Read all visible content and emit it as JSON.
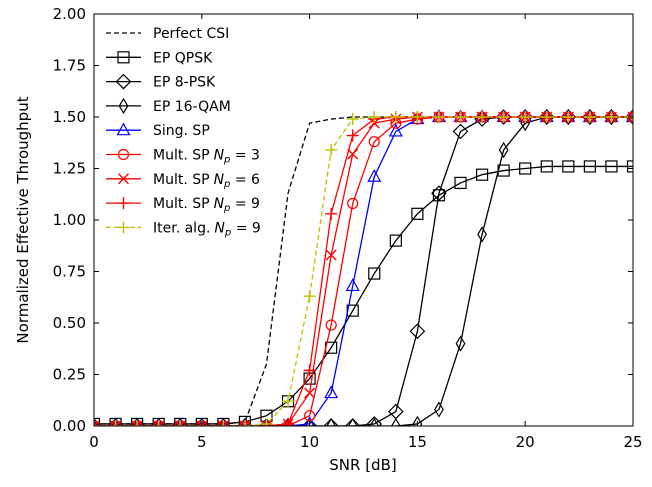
{
  "chart_data": {
    "type": "line",
    "xlabel": "SNR [dB]",
    "ylabel": "Normalized Effective Throughput",
    "xlim": [
      0,
      25
    ],
    "ylim": [
      0,
      2.0
    ],
    "xticks": [
      "0",
      "5",
      "10",
      "15",
      "20",
      "25"
    ],
    "yticks": [
      "0.00",
      "0.25",
      "0.50",
      "0.75",
      "1.00",
      "1.25",
      "1.50",
      "1.75",
      "2.00"
    ],
    "grid": false,
    "legend_position": "upper-left",
    "series": [
      {
        "name": "Perfect CSI",
        "color": "#000000",
        "dash": "dashed",
        "marker": "none",
        "x": [
          0,
          1,
          2,
          3,
          4,
          5,
          6,
          7,
          8,
          9,
          10,
          11,
          12,
          13,
          14,
          15,
          16,
          17,
          18,
          19,
          20,
          21,
          22,
          23,
          24,
          25
        ],
        "y": [
          0.01,
          0.01,
          0.01,
          0.01,
          0.01,
          0.01,
          0.01,
          0.02,
          0.3,
          1.13,
          1.47,
          1.49,
          1.5,
          1.5,
          1.5,
          1.5,
          1.5,
          1.5,
          1.5,
          1.5,
          1.5,
          1.5,
          1.5,
          1.5,
          1.5,
          1.5
        ]
      },
      {
        "name": "EP QPSK",
        "color": "#000000",
        "dash": "solid",
        "marker": "square",
        "x": [
          0,
          1,
          2,
          3,
          4,
          5,
          6,
          7,
          8,
          9,
          10,
          11,
          12,
          13,
          14,
          15,
          16,
          17,
          18,
          19,
          20,
          21,
          22,
          23,
          24,
          25
        ],
        "y": [
          0.01,
          0.01,
          0.01,
          0.01,
          0.01,
          0.01,
          0.01,
          0.02,
          0.05,
          0.12,
          0.23,
          0.38,
          0.56,
          0.74,
          0.9,
          1.03,
          1.12,
          1.18,
          1.22,
          1.24,
          1.25,
          1.26,
          1.26,
          1.26,
          1.26,
          1.26
        ]
      },
      {
        "name": "EP 8-PSK",
        "color": "#000000",
        "dash": "solid",
        "marker": "diamond",
        "x": [
          0,
          1,
          2,
          3,
          4,
          5,
          6,
          7,
          8,
          9,
          10,
          11,
          12,
          13,
          14,
          15,
          16,
          17,
          18,
          19,
          20,
          21,
          22,
          23,
          24,
          25
        ],
        "y": [
          0,
          0,
          0,
          0,
          0,
          0,
          0,
          0,
          0,
          0,
          0,
          0,
          0,
          0.01,
          0.07,
          0.46,
          1.13,
          1.43,
          1.49,
          1.5,
          1.5,
          1.5,
          1.5,
          1.5,
          1.5,
          1.5
        ]
      },
      {
        "name": "EP 16-QAM",
        "color": "#000000",
        "dash": "solid",
        "marker": "thin-diamond",
        "x": [
          0,
          1,
          2,
          3,
          4,
          5,
          6,
          7,
          8,
          9,
          10,
          11,
          12,
          13,
          14,
          15,
          16,
          17,
          18,
          19,
          20,
          21,
          22,
          23,
          24,
          25
        ],
        "y": [
          0,
          0,
          0,
          0,
          0,
          0,
          0,
          0,
          0,
          0,
          0,
          0,
          0,
          0,
          0,
          0.01,
          0.08,
          0.4,
          0.93,
          1.34,
          1.47,
          1.5,
          1.5,
          1.5,
          1.5,
          1.5
        ]
      },
      {
        "name": "Sing. SP",
        "color": "#0000ff",
        "dash": "solid",
        "marker": "triangle",
        "x": [
          0,
          1,
          2,
          3,
          4,
          5,
          6,
          7,
          8,
          9,
          10,
          11,
          12,
          13,
          14,
          15,
          16,
          17,
          18,
          19,
          20,
          21,
          22,
          23,
          24,
          25
        ],
        "y": [
          0,
          0,
          0,
          0,
          0,
          0,
          0,
          0,
          0,
          0,
          0.01,
          0.16,
          0.68,
          1.21,
          1.43,
          1.49,
          1.5,
          1.5,
          1.5,
          1.5,
          1.5,
          1.5,
          1.5,
          1.5,
          1.5,
          1.5
        ]
      },
      {
        "name": "Mult. SP",
        "np": "3",
        "color": "#ff0000",
        "dash": "solid",
        "marker": "circle",
        "x": [
          0,
          1,
          2,
          3,
          4,
          5,
          6,
          7,
          8,
          9,
          10,
          11,
          12,
          13,
          14,
          15,
          16,
          17,
          18,
          19,
          20,
          21,
          22,
          23,
          24,
          25
        ],
        "y": [
          0,
          0,
          0,
          0,
          0,
          0,
          0,
          0,
          0,
          0,
          0.05,
          0.49,
          1.08,
          1.38,
          1.47,
          1.49,
          1.5,
          1.5,
          1.5,
          1.5,
          1.5,
          1.5,
          1.5,
          1.5,
          1.5,
          1.5
        ]
      },
      {
        "name": "Mult. SP",
        "np": "6",
        "color": "#ff0000",
        "dash": "solid",
        "marker": "x",
        "x": [
          0,
          1,
          2,
          3,
          4,
          5,
          6,
          7,
          8,
          9,
          10,
          11,
          12,
          13,
          14,
          15,
          16,
          17,
          18,
          19,
          20,
          21,
          22,
          23,
          24,
          25
        ],
        "y": [
          0,
          0,
          0,
          0,
          0,
          0,
          0,
          0,
          0,
          0.01,
          0.16,
          0.83,
          1.32,
          1.47,
          1.49,
          1.5,
          1.5,
          1.5,
          1.5,
          1.5,
          1.5,
          1.5,
          1.5,
          1.5,
          1.5,
          1.5
        ]
      },
      {
        "name": "Mult. SP",
        "np": "9",
        "color": "#ff0000",
        "dash": "solid",
        "marker": "plus",
        "x": [
          0,
          1,
          2,
          3,
          4,
          5,
          6,
          7,
          8,
          9,
          10,
          11,
          12,
          13,
          14,
          15,
          16,
          17,
          18,
          19,
          20,
          21,
          22,
          23,
          24,
          25
        ],
        "y": [
          0,
          0,
          0,
          0,
          0,
          0,
          0,
          0,
          0,
          0.01,
          0.27,
          1.03,
          1.41,
          1.49,
          1.5,
          1.5,
          1.5,
          1.5,
          1.5,
          1.5,
          1.5,
          1.5,
          1.5,
          1.5,
          1.5,
          1.5
        ]
      },
      {
        "name": "Iter. alg.",
        "np": "9",
        "color": "#bfbf00",
        "dash": "dashed",
        "marker": "plus",
        "x": [
          0,
          1,
          2,
          3,
          4,
          5,
          6,
          7,
          8,
          9,
          10,
          11,
          12,
          13,
          14,
          15,
          16,
          17,
          18,
          19,
          20,
          21,
          22,
          23,
          24,
          25
        ],
        "y": [
          0,
          0,
          0,
          0,
          0,
          0,
          0,
          0,
          0.01,
          0.12,
          0.63,
          1.34,
          1.49,
          1.5,
          1.5,
          1.5,
          1.5,
          1.5,
          1.5,
          1.5,
          1.5,
          1.5,
          1.5,
          1.5,
          1.5,
          1.5
        ]
      }
    ],
    "legend_np_symbol": "N",
    "legend_np_subscript": "p"
  }
}
